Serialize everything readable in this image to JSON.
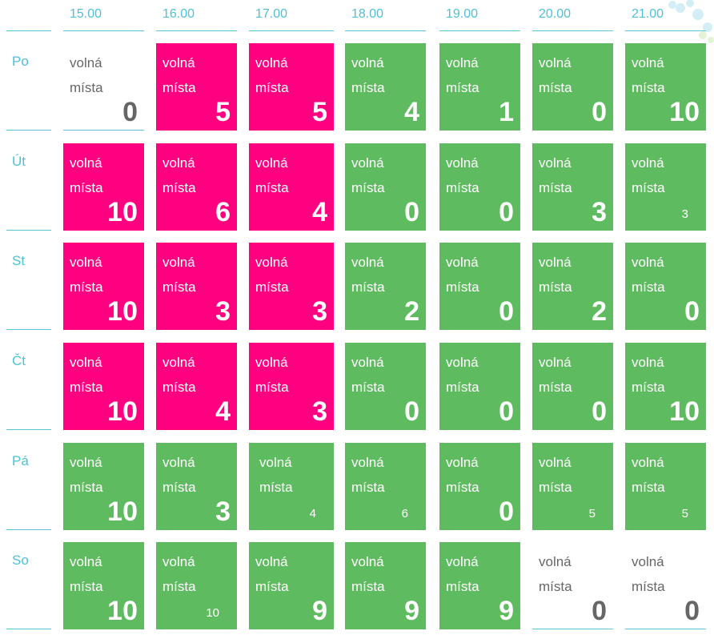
{
  "times": [
    "15.00",
    "16.00",
    "17.00",
    "18.00",
    "19.00",
    "20.00",
    "21.00"
  ],
  "days": [
    "Po",
    "Út",
    "St",
    "Čt",
    "Pá",
    "So"
  ],
  "colors": {
    "pink": "#ff0080",
    "green": "#5fbb60",
    "accent": "#4fc0d6"
  },
  "cell_labels": [
    "volná",
    "místa"
  ],
  "rows": [
    [
      {
        "color": "none",
        "v": "0"
      },
      {
        "color": "pink",
        "v": "5"
      },
      {
        "color": "pink",
        "v": "5"
      },
      {
        "color": "green",
        "v": "4"
      },
      {
        "color": "green",
        "v": "1"
      },
      {
        "color": "green",
        "v": "0"
      },
      {
        "color": "green",
        "v": "10"
      }
    ],
    [
      {
        "color": "pink",
        "v": "10"
      },
      {
        "color": "pink",
        "v": "6"
      },
      {
        "color": "pink",
        "v": "4"
      },
      {
        "color": "green",
        "v": "0"
      },
      {
        "color": "green",
        "v": "0"
      },
      {
        "color": "green",
        "v": "3"
      },
      {
        "color": "green",
        "v": "3",
        "small": true
      }
    ],
    [
      {
        "color": "pink",
        "v": "10"
      },
      {
        "color": "pink",
        "v": "3"
      },
      {
        "color": "pink",
        "v": "3"
      },
      {
        "color": "green",
        "v": "2"
      },
      {
        "color": "green",
        "v": "0"
      },
      {
        "color": "green",
        "v": "2"
      },
      {
        "color": "green",
        "v": "0"
      }
    ],
    [
      {
        "color": "pink",
        "v": "10"
      },
      {
        "color": "pink",
        "v": "4"
      },
      {
        "color": "pink",
        "v": "3"
      },
      {
        "color": "green",
        "v": "0"
      },
      {
        "color": "green",
        "v": "0"
      },
      {
        "color": "green",
        "v": "0"
      },
      {
        "color": "green",
        "v": "10"
      }
    ],
    [
      {
        "color": "green",
        "v": "10"
      },
      {
        "color": "green",
        "v": "3"
      },
      {
        "color": "green",
        "v": "4",
        "small": true,
        "indent": true
      },
      {
        "color": "green",
        "v": "6",
        "small": true
      },
      {
        "color": "green",
        "v": "0"
      },
      {
        "color": "green",
        "v": "5",
        "small": true
      },
      {
        "color": "green",
        "v": "5",
        "small": true
      }
    ],
    [
      {
        "color": "green",
        "v": "10"
      },
      {
        "color": "green",
        "v": "10",
        "small": true
      },
      {
        "color": "green",
        "v": "9"
      },
      {
        "color": "green",
        "v": "9"
      },
      {
        "color": "green",
        "v": "9"
      },
      {
        "color": "none",
        "v": "0"
      },
      {
        "color": "none",
        "v": "0"
      }
    ]
  ]
}
